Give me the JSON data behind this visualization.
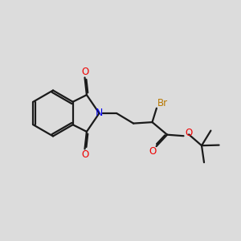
{
  "bg_color": "#dcdcdc",
  "bond_color": "#1a1a1a",
  "n_color": "#0000ee",
  "o_color": "#ee0000",
  "br_color": "#b87800",
  "lw": 1.6,
  "dbo": 0.055,
  "xlim": [
    0,
    10
  ],
  "ylim": [
    0,
    10
  ]
}
